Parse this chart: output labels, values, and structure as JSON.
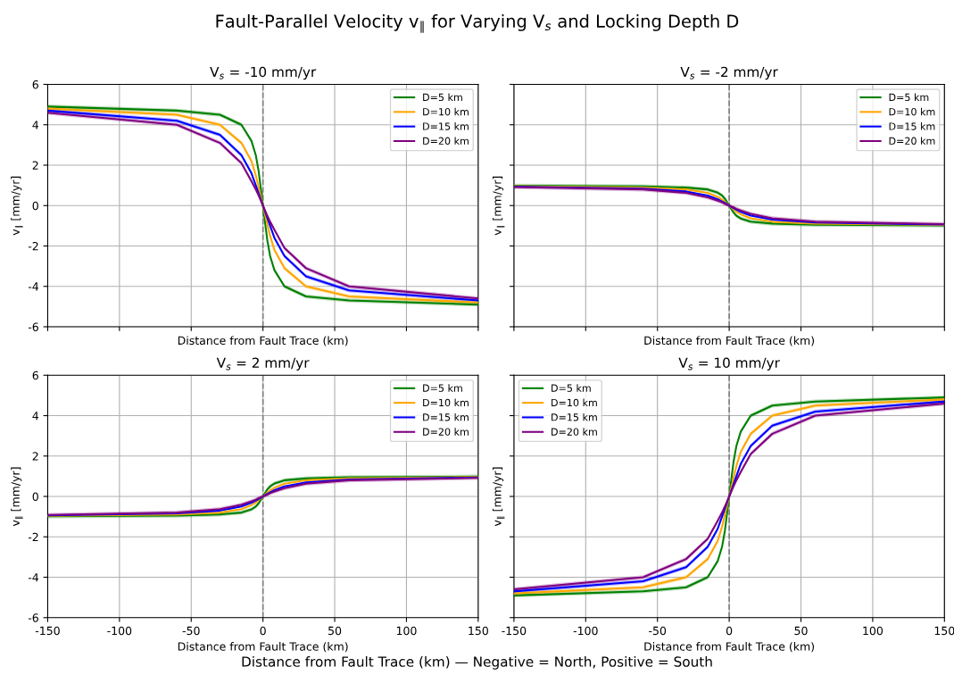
{
  "chart_data": [
    {
      "type": "line",
      "title": "V$_{s}$ = -10 mm/yr",
      "xlabel": "Distance from Fault Trace (km)",
      "ylabel": "v$_{∥}$ [mm/yr]",
      "annotations": [
        "Fault-Parallel Velocity v$_{∥}$ for Varying V$_{s}$ and Locking Depth D"
      ],
      "x": [
        -150,
        -60,
        -30,
        -15,
        -8,
        -5,
        -3,
        0,
        3,
        5,
        8,
        15,
        30,
        60,
        150
      ],
      "xlim": [
        -150,
        150
      ],
      "xticks": [
        -150,
        -100,
        -50,
        0,
        50,
        100,
        150
      ],
      "ylim": [
        -6,
        6
      ],
      "yticks": [
        -6,
        -4,
        -2,
        0,
        2,
        4,
        6
      ],
      "grid": true,
      "legend": "top right",
      "tick_labels": "y",
      "ref_lines": [
        {
          "axis": "x",
          "value": 0,
          "color": "#808080",
          "line_style": "dashed"
        }
      ],
      "series": [
        {
          "name": "D=5 km",
          "color": "#008000",
          "values": [
            4.9,
            4.7,
            4.5,
            4.0,
            3.2,
            2.5,
            1.7,
            0,
            -1.7,
            -2.5,
            -3.2,
            -4.0,
            -4.5,
            -4.7,
            -4.9
          ],
          "lower": [
            4.8,
            4.6,
            4.4,
            3.9,
            3.1,
            2.4,
            1.6,
            -0.1,
            -1.8,
            -2.6,
            -3.3,
            -4.1,
            -4.6,
            -4.8,
            -5.0
          ],
          "upper": [
            5.0,
            4.8,
            4.6,
            4.1,
            3.3,
            2.6,
            1.8,
            0.1,
            -1.6,
            -2.4,
            -3.1,
            -3.9,
            -4.4,
            -4.6,
            -4.8
          ]
        },
        {
          "name": "D=10 km",
          "color": "#ffa500",
          "values": [
            4.8,
            4.5,
            4.0,
            3.1,
            2.2,
            1.5,
            0.9,
            0,
            -0.9,
            -1.5,
            -2.2,
            -3.1,
            -4.0,
            -4.5,
            -4.8
          ],
          "lower": [
            4.7,
            4.4,
            3.9,
            3.0,
            2.1,
            1.4,
            0.8,
            -0.1,
            -1.0,
            -1.6,
            -2.3,
            -3.2,
            -4.1,
            -4.6,
            -4.9
          ],
          "upper": [
            4.9,
            4.6,
            4.1,
            3.2,
            2.3,
            1.6,
            1.0,
            0.1,
            -0.8,
            -1.4,
            -2.1,
            -3.0,
            -3.9,
            -4.4,
            -4.7
          ]
        },
        {
          "name": "D=15 km",
          "color": "#0000ff",
          "values": [
            4.7,
            4.2,
            3.5,
            2.5,
            1.6,
            1.0,
            0.6,
            0,
            -0.6,
            -1.0,
            -1.6,
            -2.5,
            -3.5,
            -4.2,
            -4.7
          ],
          "lower": [
            4.6,
            4.1,
            3.4,
            2.4,
            1.5,
            0.9,
            0.5,
            -0.1,
            -0.7,
            -1.1,
            -1.7,
            -2.6,
            -3.6,
            -4.3,
            -4.8
          ],
          "upper": [
            4.8,
            4.3,
            3.6,
            2.6,
            1.7,
            1.1,
            0.7,
            0.1,
            -0.5,
            -0.9,
            -1.5,
            -2.4,
            -3.4,
            -4.1,
            -4.6
          ]
        },
        {
          "name": "D=20 km",
          "color": "#800080",
          "values": [
            4.6,
            4.0,
            3.1,
            2.1,
            1.2,
            0.8,
            0.5,
            0,
            -0.5,
            -0.8,
            -1.2,
            -2.1,
            -3.1,
            -4.0,
            -4.6
          ],
          "lower": [
            4.5,
            3.9,
            3.0,
            2.0,
            1.1,
            0.7,
            0.4,
            -0.1,
            -0.6,
            -0.9,
            -1.3,
            -2.2,
            -3.2,
            -4.1,
            -4.7
          ],
          "upper": [
            4.7,
            4.1,
            3.2,
            2.2,
            1.3,
            0.9,
            0.6,
            0.1,
            -0.4,
            -0.7,
            -1.1,
            -2.0,
            -3.0,
            -3.9,
            -4.5
          ]
        }
      ]
    },
    {
      "type": "line",
      "title": "V$_{s}$ = -2 mm/yr",
      "xlabel": "Distance from Fault Trace (km)",
      "ylabel": "v$_{∥}$ [mm/yr]",
      "x": [
        -150,
        -60,
        -30,
        -15,
        -8,
        -5,
        -3,
        0,
        3,
        5,
        8,
        15,
        30,
        60,
        150
      ],
      "xlim": [
        -150,
        150
      ],
      "xticks": [
        -150,
        -100,
        -50,
        0,
        50,
        100,
        150
      ],
      "ylim": [
        -6,
        6
      ],
      "yticks": [
        -6,
        -4,
        -2,
        0,
        2,
        4,
        6
      ],
      "grid": true,
      "legend": "top right",
      "tick_labels": false,
      "ref_lines": [
        {
          "axis": "x",
          "value": 0,
          "color": "#808080",
          "line_style": "dashed"
        }
      ],
      "series": [
        {
          "name": "D=5 km",
          "color": "#008000",
          "values": [
            0.98,
            0.95,
            0.89,
            0.8,
            0.64,
            0.5,
            0.34,
            0,
            -0.34,
            -0.5,
            -0.64,
            -0.8,
            -0.89,
            -0.95,
            -0.98
          ],
          "lower": [
            0.88,
            0.85,
            0.79,
            0.7,
            0.54,
            0.4,
            0.24,
            -0.1,
            -0.44,
            -0.6,
            -0.74,
            -0.9,
            -0.99,
            -1.05,
            -1.08
          ],
          "upper": [
            1.08,
            1.05,
            0.99,
            0.9,
            0.74,
            0.6,
            0.44,
            0.1,
            -0.24,
            -0.4,
            -0.54,
            -0.7,
            -0.79,
            -0.85,
            -0.88
          ]
        },
        {
          "name": "D=10 km",
          "color": "#ffa500",
          "values": [
            0.96,
            0.89,
            0.8,
            0.63,
            0.43,
            0.3,
            0.19,
            0,
            -0.19,
            -0.3,
            -0.43,
            -0.63,
            -0.8,
            -0.89,
            -0.96
          ]
        },
        {
          "name": "D=15 km",
          "color": "#0000ff",
          "values": [
            0.94,
            0.84,
            0.7,
            0.5,
            0.31,
            0.2,
            0.13,
            0,
            -0.13,
            -0.2,
            -0.31,
            -0.5,
            -0.7,
            -0.84,
            -0.94
          ]
        },
        {
          "name": "D=20 km",
          "color": "#800080",
          "values": [
            0.92,
            0.8,
            0.63,
            0.41,
            0.24,
            0.16,
            0.09,
            0,
            -0.09,
            -0.16,
            -0.24,
            -0.41,
            -0.63,
            -0.8,
            -0.92
          ],
          "lower": [
            0.82,
            0.7,
            0.53,
            0.31,
            0.14,
            0.06,
            -0.01,
            -0.1,
            -0.19,
            -0.26,
            -0.34,
            -0.51,
            -0.73,
            -0.9,
            -1.02
          ],
          "upper": [
            1.02,
            0.9,
            0.73,
            0.51,
            0.34,
            0.26,
            0.19,
            0.1,
            -0.01,
            -0.06,
            -0.14,
            -0.31,
            -0.53,
            -0.7,
            -0.82
          ]
        }
      ]
    },
    {
      "type": "line",
      "title": "V$_{s}$ = 2 mm/yr",
      "xlabel": "Distance from Fault Trace (km)",
      "ylabel": "v$_{∥}$ [mm/yr]",
      "x": [
        -150,
        -60,
        -30,
        -15,
        -8,
        -5,
        -3,
        0,
        3,
        5,
        8,
        15,
        30,
        60,
        150
      ],
      "xlim": [
        -150,
        150
      ],
      "xticks": [
        -150,
        -100,
        -50,
        0,
        50,
        100,
        150
      ],
      "ylim": [
        -6,
        6
      ],
      "yticks": [
        -6,
        -4,
        -2,
        0,
        2,
        4,
        6
      ],
      "grid": true,
      "legend": "top right",
      "ref_lines": [
        {
          "axis": "x",
          "value": 0,
          "color": "#808080",
          "line_style": "dashed"
        }
      ],
      "series": [
        {
          "name": "D=5 km",
          "color": "#008000",
          "values": [
            -0.98,
            -0.95,
            -0.89,
            -0.8,
            -0.64,
            -0.5,
            -0.34,
            0,
            0.34,
            0.5,
            0.64,
            0.8,
            0.89,
            0.95,
            0.98
          ],
          "lower": [
            -1.08,
            -1.05,
            -0.99,
            -0.9,
            -0.74,
            -0.6,
            -0.44,
            -0.1,
            0.24,
            0.4,
            0.54,
            0.7,
            0.79,
            0.85,
            0.88
          ],
          "upper": [
            -0.88,
            -0.85,
            -0.79,
            -0.7,
            -0.54,
            -0.4,
            -0.24,
            0.1,
            0.44,
            0.6,
            0.74,
            0.9,
            0.99,
            1.05,
            1.08
          ]
        },
        {
          "name": "D=10 km",
          "color": "#ffa500",
          "values": [
            -0.96,
            -0.89,
            -0.8,
            -0.63,
            -0.43,
            -0.3,
            -0.19,
            0,
            0.19,
            0.3,
            0.43,
            0.63,
            0.8,
            0.89,
            0.96
          ]
        },
        {
          "name": "D=15 km",
          "color": "#0000ff",
          "values": [
            -0.94,
            -0.84,
            -0.7,
            -0.5,
            -0.31,
            -0.2,
            -0.13,
            0,
            0.13,
            0.2,
            0.31,
            0.5,
            0.7,
            0.84,
            0.94
          ]
        },
        {
          "name": "D=20 km",
          "color": "#800080",
          "values": [
            -0.92,
            -0.8,
            -0.63,
            -0.41,
            -0.24,
            -0.16,
            -0.09,
            0,
            0.09,
            0.16,
            0.24,
            0.41,
            0.63,
            0.8,
            0.92
          ],
          "lower": [
            -1.02,
            -0.9,
            -0.73,
            -0.51,
            -0.34,
            -0.26,
            -0.19,
            -0.1,
            -0.01,
            0.06,
            0.14,
            0.31,
            0.53,
            0.7,
            0.82
          ],
          "upper": [
            -0.82,
            -0.7,
            -0.53,
            -0.31,
            -0.14,
            -0.06,
            0.01,
            0.1,
            0.19,
            0.26,
            0.34,
            0.51,
            0.73,
            0.9,
            1.02
          ]
        }
      ]
    },
    {
      "type": "line",
      "title": "V$_{s}$ = 10 mm/yr",
      "xlabel": "Distance from Fault Trace (km)",
      "ylabel": "v$_{∥}$ [mm/yr]",
      "annotations": [
        "Distance from Fault Trace (km) — Negative = North, Positive = South"
      ],
      "x": [
        -150,
        -60,
        -30,
        -15,
        -8,
        -5,
        -3,
        0,
        3,
        5,
        8,
        15,
        30,
        60,
        150
      ],
      "xlim": [
        -150,
        150
      ],
      "xticks": [
        -150,
        -100,
        -50,
        0,
        50,
        100,
        150
      ],
      "ylim": [
        -6,
        6
      ],
      "yticks": [
        -6,
        -4,
        -2,
        0,
        2,
        4,
        6
      ],
      "grid": true,
      "legend": "top left",
      "tick_labels": "x",
      "ref_lines": [
        {
          "axis": "x",
          "value": 0,
          "color": "#808080",
          "line_style": "dashed"
        }
      ],
      "series": [
        {
          "name": "D=5 km",
          "color": "#008000",
          "values": [
            -4.9,
            -4.7,
            -4.5,
            -4.0,
            -3.2,
            -2.5,
            -1.7,
            0,
            1.7,
            2.5,
            3.2,
            4.0,
            4.5,
            4.7,
            4.9
          ],
          "lower": [
            -5.0,
            -4.8,
            -4.6,
            -4.1,
            -3.3,
            -2.6,
            -1.8,
            -0.1,
            1.6,
            2.4,
            3.1,
            3.9,
            4.4,
            4.6,
            4.8
          ],
          "upper": [
            -4.8,
            -4.6,
            -4.4,
            -3.9,
            -3.1,
            -2.4,
            -1.6,
            0.1,
            1.8,
            2.6,
            3.3,
            4.1,
            4.6,
            4.8,
            5.0
          ]
        },
        {
          "name": "D=10 km",
          "color": "#ffa500",
          "values": [
            -4.8,
            -4.5,
            -4.0,
            -3.1,
            -2.2,
            -1.5,
            -0.9,
            0,
            0.9,
            1.5,
            2.2,
            3.1,
            4.0,
            4.5,
            4.8
          ],
          "lower": [
            -4.9,
            -4.6,
            -4.1,
            -3.2,
            -2.3,
            -1.6,
            -1.0,
            -0.1,
            0.8,
            1.4,
            2.1,
            3.0,
            3.9,
            4.4,
            4.7
          ],
          "upper": [
            -4.7,
            -4.4,
            -3.9,
            -3.0,
            -2.1,
            -1.4,
            -0.8,
            0.1,
            1.0,
            1.6,
            2.3,
            3.2,
            4.1,
            4.6,
            4.9
          ]
        },
        {
          "name": "D=15 km",
          "color": "#0000ff",
          "values": [
            -4.7,
            -4.2,
            -3.5,
            -2.5,
            -1.6,
            -1.0,
            -0.6,
            0,
            0.6,
            1.0,
            1.6,
            2.5,
            3.5,
            4.2,
            4.7
          ],
          "lower": [
            -4.8,
            -4.3,
            -3.6,
            -2.6,
            -1.7,
            -1.1,
            -0.7,
            -0.1,
            0.5,
            0.9,
            1.5,
            2.4,
            3.4,
            4.1,
            4.6
          ],
          "upper": [
            -4.6,
            -4.1,
            -3.4,
            -2.4,
            -1.5,
            -0.9,
            -0.5,
            0.1,
            0.7,
            1.1,
            1.7,
            2.6,
            3.6,
            4.3,
            4.8
          ]
        },
        {
          "name": "D=20 km",
          "color": "#800080",
          "values": [
            -4.6,
            -4.0,
            -3.1,
            -2.1,
            -1.2,
            -0.8,
            -0.5,
            0,
            0.5,
            0.8,
            1.2,
            2.1,
            3.1,
            4.0,
            4.6
          ],
          "lower": [
            -4.7,
            -4.1,
            -3.2,
            -2.2,
            -1.3,
            -0.9,
            -0.6,
            -0.1,
            0.4,
            0.7,
            1.1,
            2.0,
            3.0,
            3.9,
            4.5
          ],
          "upper": [
            -4.5,
            -3.9,
            -3.0,
            -2.0,
            -1.1,
            -0.7,
            -0.4,
            0.1,
            0.6,
            0.9,
            1.3,
            2.2,
            3.2,
            4.1,
            4.7
          ]
        }
      ]
    }
  ]
}
